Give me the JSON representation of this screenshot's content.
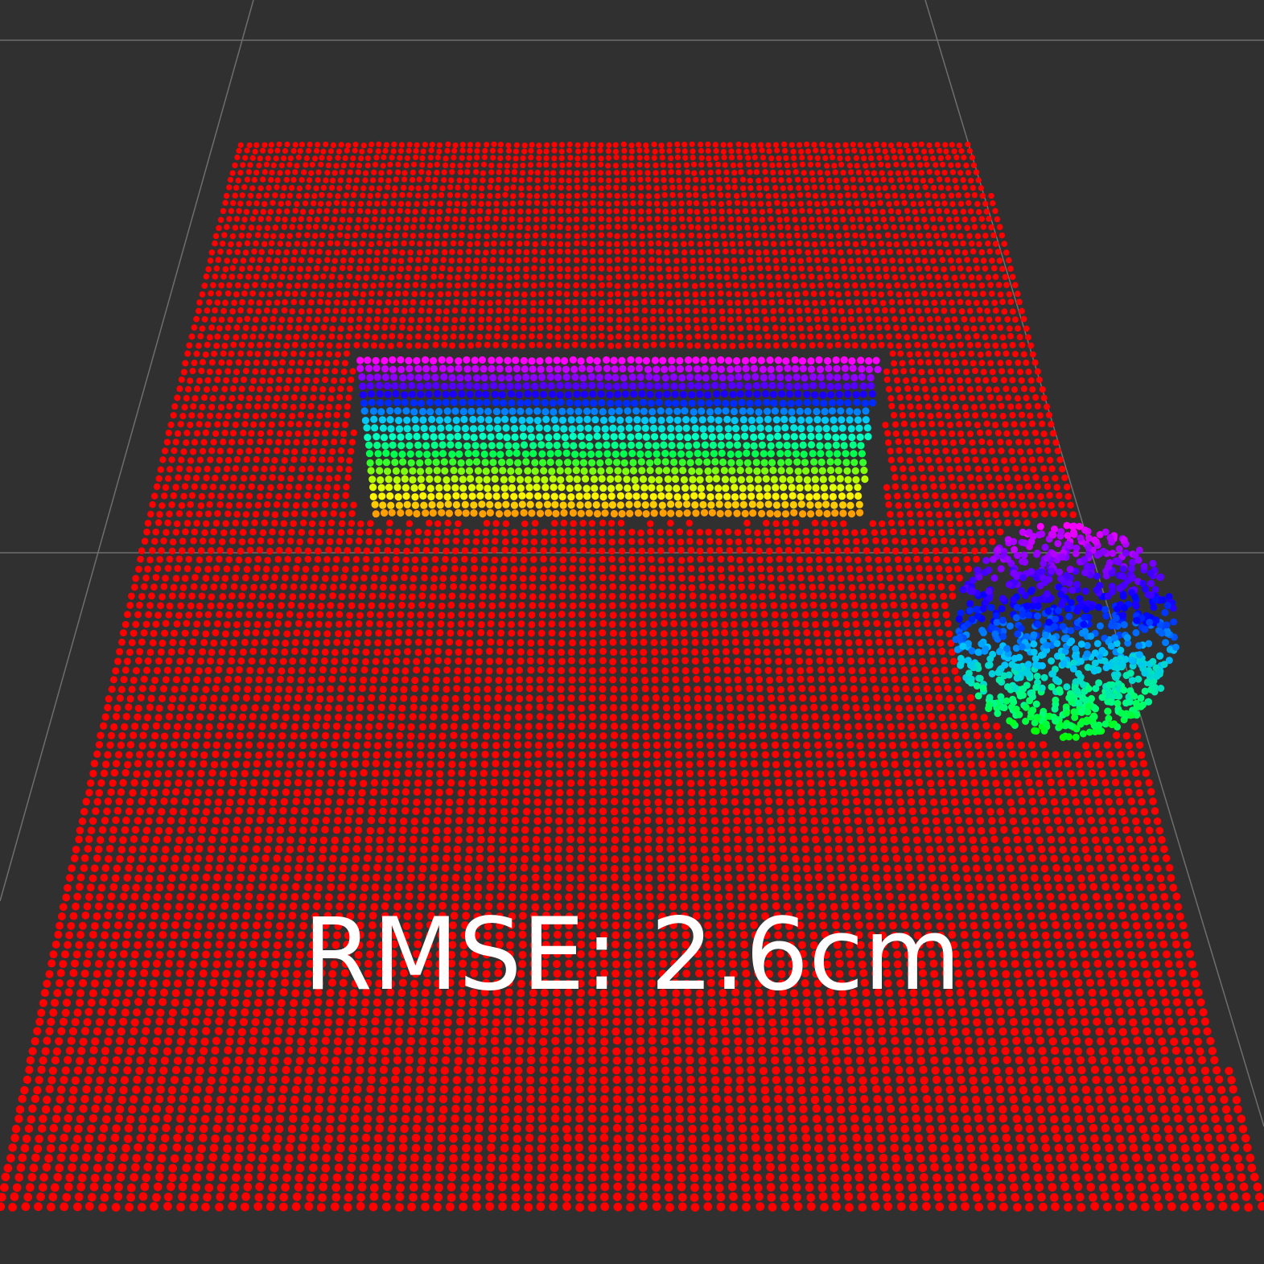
{
  "viewport": {
    "background_color": "#303030",
    "grid_line_color": "#6e6e6e"
  },
  "point_cloud": {
    "ground_plane": {
      "color": "#ff0000"
    },
    "box_object": {
      "colormap": [
        "#ff00ff",
        "#8000ff",
        "#0000ff",
        "#00c0ff",
        "#00ffc0",
        "#00ff40",
        "#a0ff00",
        "#ffff00",
        "#ffa000"
      ]
    },
    "sphere_object": {
      "colormap": [
        "#ff00ff",
        "#8000ff",
        "#0000ff",
        "#00c0ff",
        "#00ff80",
        "#00ff00"
      ]
    }
  },
  "overlay": {
    "metric_label": "RMSE: 2.6cm"
  }
}
